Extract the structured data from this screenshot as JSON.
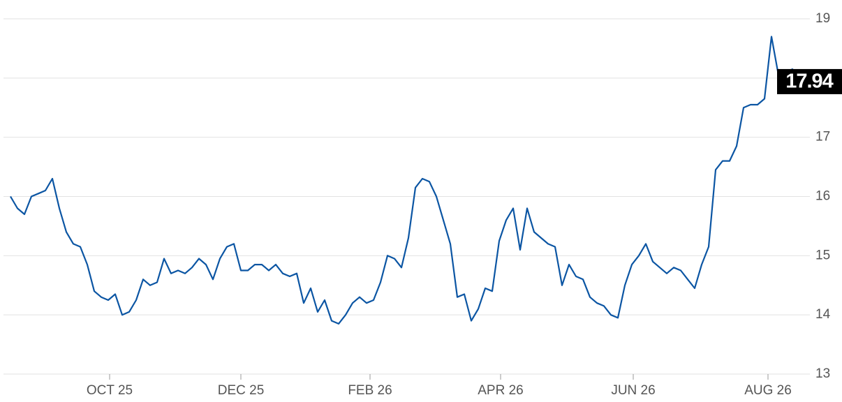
{
  "chart_data": {
    "type": "line",
    "color": "#0b55a3",
    "grid": true,
    "ylim": [
      13,
      19
    ],
    "yticks": [
      13,
      14,
      15,
      16,
      17,
      18,
      19
    ],
    "xlim": [
      -1,
      114.5
    ],
    "xticks": [
      {
        "value": 14.2,
        "label": "OCT 25"
      },
      {
        "value": 33,
        "label": "DEC 25"
      },
      {
        "value": 51.5,
        "label": "FEB 26"
      },
      {
        "value": 70.2,
        "label": "APR 26"
      },
      {
        "value": 89.2,
        "label": "JUN 26"
      },
      {
        "value": 108.5,
        "label": "AUG 26"
      }
    ],
    "values": [
      16.0,
      15.8,
      15.7,
      16.0,
      16.05,
      16.1,
      16.3,
      15.8,
      15.4,
      15.2,
      15.15,
      14.85,
      14.4,
      14.3,
      14.25,
      14.35,
      14.0,
      14.05,
      14.25,
      14.6,
      14.5,
      14.55,
      14.95,
      14.7,
      14.75,
      14.7,
      14.8,
      14.95,
      14.85,
      14.6,
      14.95,
      15.15,
      15.2,
      14.75,
      14.75,
      14.85,
      14.85,
      14.75,
      14.85,
      14.7,
      14.65,
      14.7,
      14.2,
      14.45,
      14.05,
      14.25,
      13.9,
      13.85,
      14.0,
      14.2,
      14.3,
      14.2,
      14.25,
      14.55,
      15.0,
      14.95,
      14.8,
      15.3,
      16.15,
      16.3,
      16.25,
      16.0,
      15.6,
      15.2,
      14.3,
      14.35,
      13.9,
      14.1,
      14.45,
      14.4,
      15.25,
      15.6,
      15.8,
      15.1,
      15.8,
      15.4,
      15.3,
      15.2,
      15.15,
      14.5,
      14.85,
      14.65,
      14.6,
      14.3,
      14.2,
      14.15,
      14.0,
      13.95,
      14.5,
      14.85,
      15.0,
      15.2,
      14.9,
      14.8,
      14.7,
      14.8,
      14.75,
      14.6,
      14.45,
      14.85,
      15.15,
      16.45,
      16.6,
      16.6,
      16.85,
      17.5,
      17.55,
      17.55,
      17.65,
      18.7,
      18.05,
      18.1,
      18.15,
      17.94
    ]
  }
}
